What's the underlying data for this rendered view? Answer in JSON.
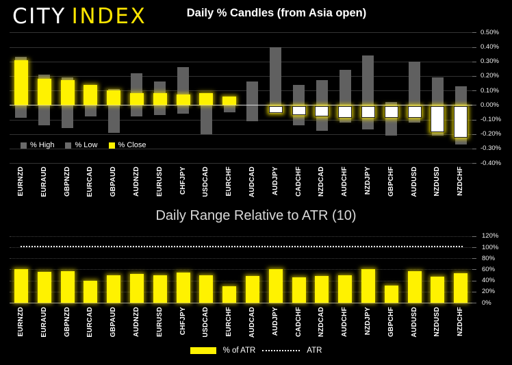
{
  "logo": {
    "text_primary": "CITY",
    "text_secondary": "INDEX",
    "primary_color": "#ffffff",
    "secondary_color": "#ffe600"
  },
  "chart1": {
    "title": "Daily % Candles (from Asia open)",
    "legend": [
      "% High",
      "% Low",
      "% Close"
    ],
    "y_ticks": [
      "0.50%",
      "0.40%",
      "0.30%",
      "0.20%",
      "0.10%",
      "0.00%",
      "-0.10%",
      "-0.20%",
      "-0.30%",
      "-0.40%"
    ]
  },
  "chart2": {
    "title": "Daily Range Relative to ATR (10)",
    "legend": [
      "% of ATR",
      "ATR"
    ],
    "y_ticks": [
      "120%",
      "100%",
      "80%",
      "60%",
      "40%",
      "20%",
      "0%"
    ]
  },
  "colors": {
    "background": "#000000",
    "bar_gray": "#606060",
    "bar_yellow": "#fff200",
    "negative_close_fill": "#ffffff",
    "atr_line": "#ffffff",
    "logo_yellow": "#ffe600"
  },
  "chart_data": [
    {
      "type": "bar",
      "subtype": "high-low-close-candles",
      "title": "Daily % Candles (from Asia open)",
      "categories": [
        "EURNZD",
        "EURAUD",
        "GBPNZD",
        "EURCAD",
        "GBPAUD",
        "AUDNZD",
        "EURUSD",
        "CHFJPY",
        "USDCAD",
        "EURCHF",
        "AUDCAD",
        "AUDJPY",
        "CADCHF",
        "NZDCAD",
        "AUDCHF",
        "NZDJPY",
        "GBPCHF",
        "AUDUSD",
        "NZDUSD",
        "NZDCHF"
      ],
      "series": [
        {
          "name": "% High",
          "values": [
            0.33,
            0.21,
            0.19,
            0.14,
            0.11,
            0.22,
            0.16,
            0.26,
            0.08,
            0.06,
            0.16,
            0.4,
            0.14,
            0.17,
            0.24,
            0.34,
            0.02,
            0.3,
            0.19,
            0.13
          ]
        },
        {
          "name": "% Low",
          "values": [
            -0.09,
            -0.14,
            -0.16,
            -0.08,
            -0.19,
            -0.08,
            -0.07,
            -0.06,
            -0.2,
            -0.05,
            -0.11,
            -0.06,
            -0.14,
            -0.18,
            -0.12,
            -0.17,
            -0.21,
            -0.12,
            -0.21,
            -0.27
          ]
        },
        {
          "name": "% Close",
          "values": [
            0.31,
            0.18,
            0.17,
            0.14,
            0.1,
            0.08,
            0.08,
            0.07,
            0.08,
            0.06,
            0.0,
            -0.05,
            -0.06,
            -0.07,
            -0.08,
            -0.08,
            -0.08,
            -0.08,
            -0.18,
            -0.22
          ]
        }
      ],
      "ylim": [
        -0.4,
        0.5
      ],
      "ytick_step": 0.1,
      "unit": "%",
      "grid": true,
      "legend_position": "bottom-left"
    },
    {
      "type": "bar",
      "title": "Daily Range Relative to ATR (10)",
      "categories": [
        "EURNZD",
        "EURAUD",
        "GBPNZD",
        "EURCAD",
        "GBPAUD",
        "AUDNZD",
        "EURUSD",
        "CHFJPY",
        "USDCAD",
        "EURCHF",
        "AUDCAD",
        "AUDJPY",
        "CADCHF",
        "NZDCAD",
        "AUDCHF",
        "NZDJPY",
        "GBPCHF",
        "AUDUSD",
        "NZDUSD",
        "NZDCHF"
      ],
      "series": [
        {
          "name": "% of ATR",
          "values": [
            61,
            55,
            57,
            40,
            50,
            52,
            49,
            54,
            50,
            30,
            48,
            60,
            46,
            48,
            50,
            61,
            31,
            57,
            47,
            53
          ]
        }
      ],
      "reference_line": {
        "name": "ATR",
        "value": 103,
        "style": "dotted"
      },
      "ylim": [
        0,
        120
      ],
      "ytick_step": 20,
      "unit": "%",
      "grid": true,
      "legend_position": "bottom-center"
    }
  ]
}
